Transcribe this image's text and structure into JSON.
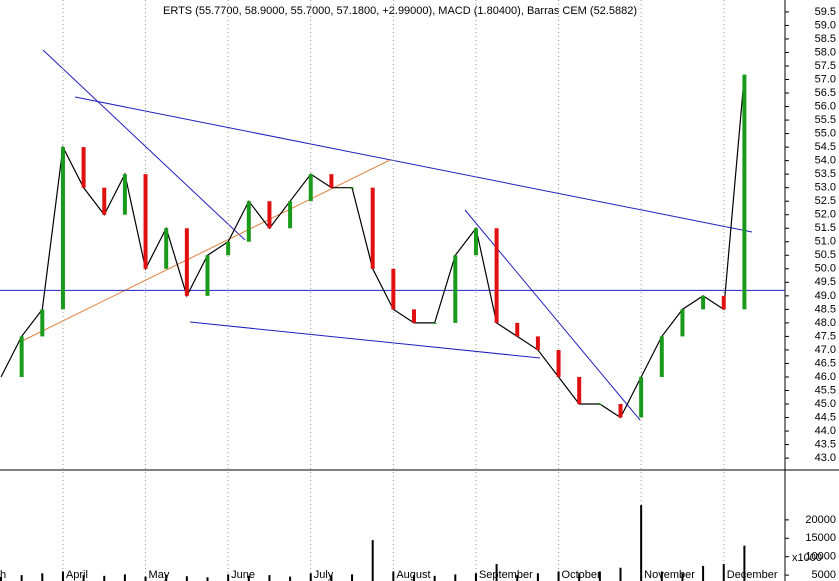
{
  "chart_data": [
    {
      "type": "line",
      "title": "ERTS (55.7700, 58.9000, 55.7000, 57.1800, +2.99000), MACD (1.80400), Barras CEM (52.5882)",
      "categories": [
        "h",
        null,
        null,
        "April",
        null,
        null,
        null,
        "May",
        null,
        null,
        null,
        "June",
        null,
        null,
        null,
        "July",
        null,
        null,
        null,
        "August",
        null,
        null,
        null,
        "September",
        null,
        null,
        null,
        "October",
        null,
        null,
        null,
        "November",
        null,
        null,
        null,
        "December",
        null
      ],
      "series": [
        {
          "name": "ERTS",
          "color": "#000000",
          "values": [
            46,
            47.5,
            48.5,
            54.5,
            53,
            52,
            53.5,
            50,
            51.5,
            49,
            50.5,
            51,
            52.5,
            51.5,
            52.5,
            53.5,
            53,
            53,
            50,
            48.5,
            48,
            48,
            50.5,
            51.5,
            48,
            47.5,
            47,
            46,
            45,
            45,
            44.5,
            46,
            47.5,
            48.5,
            49,
            48.5,
            57.18
          ]
        }
      ],
      "reference_line": 49.2,
      "ylim": [
        42.56,
        59.94
      ],
      "yticks": [
        {
          "value": 43,
          "label": "43.0"
        },
        43.5,
        {
          "value": 44,
          "label": "44.0"
        },
        44.5,
        {
          "value": 45,
          "label": "45.0"
        },
        45.5,
        {
          "value": 46,
          "label": "46.0"
        },
        46.5,
        {
          "value": 47,
          "label": "47.0"
        },
        47.5,
        {
          "value": 48,
          "label": "48.0"
        },
        48.5,
        {
          "value": 49,
          "label": "49.0"
        },
        49.5,
        {
          "value": 50,
          "label": "50.0"
        },
        50.5,
        {
          "value": 51,
          "label": "51.0"
        },
        51.5,
        {
          "value": 52,
          "label": "52.0"
        },
        52.5,
        {
          "value": 53,
          "label": "53.0"
        },
        53.5,
        {
          "value": 54,
          "label": "54.0"
        },
        54.5,
        {
          "value": 55,
          "label": "55.0"
        },
        55.5,
        {
          "value": 56,
          "label": "56.0"
        },
        56.5,
        {
          "value": 57,
          "label": "57.0"
        },
        57.5,
        {
          "value": 58,
          "label": "58.0"
        },
        58.5,
        {
          "value": 59,
          "label": "59.0"
        },
        59.5
      ],
      "grid": true
    },
    {
      "type": "bar",
      "unit_label": "x1000",
      "values": [
        4500,
        5000,
        5500,
        6000,
        5000,
        4800,
        5200,
        4600,
        5000,
        4700,
        4400,
        5200,
        4800,
        5000,
        4600,
        5500,
        5000,
        5200,
        14500,
        6000,
        5000,
        4800,
        5200,
        5500,
        8000,
        5000,
        5500,
        6000,
        5500,
        6000,
        7000,
        24000,
        6000,
        5500,
        7500,
        8000,
        13000
      ],
      "color": "#000000",
      "ylim": [
        3400,
        33000
      ],
      "yticks": [
        5000,
        10000,
        15000,
        20000
      ]
    }
  ]
}
